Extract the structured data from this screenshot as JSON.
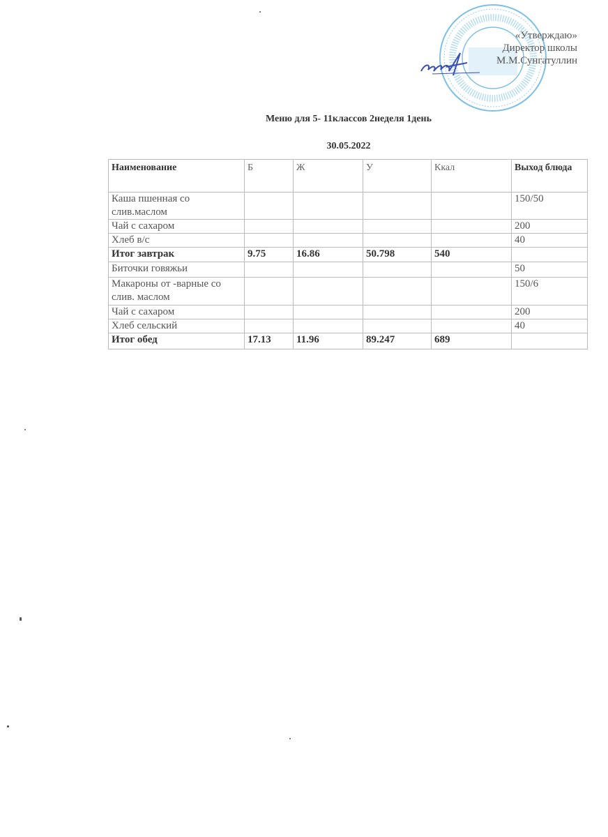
{
  "approval": {
    "line1": "«Утверждаю»",
    "line2": "Директор школы",
    "line3": "М.М.Сунгатуллин"
  },
  "stamp_color": "#5aa9d8",
  "signature_color": "#3a4fb0",
  "title": "Меню для 5- 11классов  2неделя  1день",
  "date": "30.05.2022",
  "table": {
    "headers": [
      "Наименование",
      "Б",
      "Ж",
      "У",
      "Ккал",
      "Выход блюда"
    ],
    "rows": [
      {
        "name": "Каша пшенная со слив.маслом",
        "b": "",
        "zh": "",
        "u": "",
        "kcal": "",
        "out": "150/50",
        "total": false
      },
      {
        "name": "Чай с сахаром",
        "b": "",
        "zh": "",
        "u": "",
        "kcal": "",
        "out": "200",
        "total": false
      },
      {
        "name": "Хлеб в/с",
        "b": "",
        "zh": "",
        "u": "",
        "kcal": "",
        "out": "40",
        "total": false
      },
      {
        "name": "Итог завтрак",
        "b": "9.75",
        "zh": "16.86",
        "u": "50.798",
        "kcal": "540",
        "out": "",
        "total": true
      },
      {
        "name": "Биточки говяжьи",
        "b": "",
        "zh": "",
        "u": "",
        "kcal": "",
        "out": "50",
        "total": false
      },
      {
        "name": "Макароны от -варные со слив. маслом",
        "b": "",
        "zh": "",
        "u": "",
        "kcal": "",
        "out": "150/6",
        "total": false
      },
      {
        "name": "Чай с сахаром",
        "b": "",
        "zh": "",
        "u": "",
        "kcal": "",
        "out": "200",
        "total": false
      },
      {
        "name": "Хлеб сельский",
        "b": "",
        "zh": "",
        "u": "",
        "kcal": "",
        "out": "40",
        "total": false
      },
      {
        "name": "Итог обед",
        "b": "17.13",
        "zh": "11.96",
        "u": "89.247",
        "kcal": "689",
        "out": "",
        "total": true
      }
    ]
  }
}
